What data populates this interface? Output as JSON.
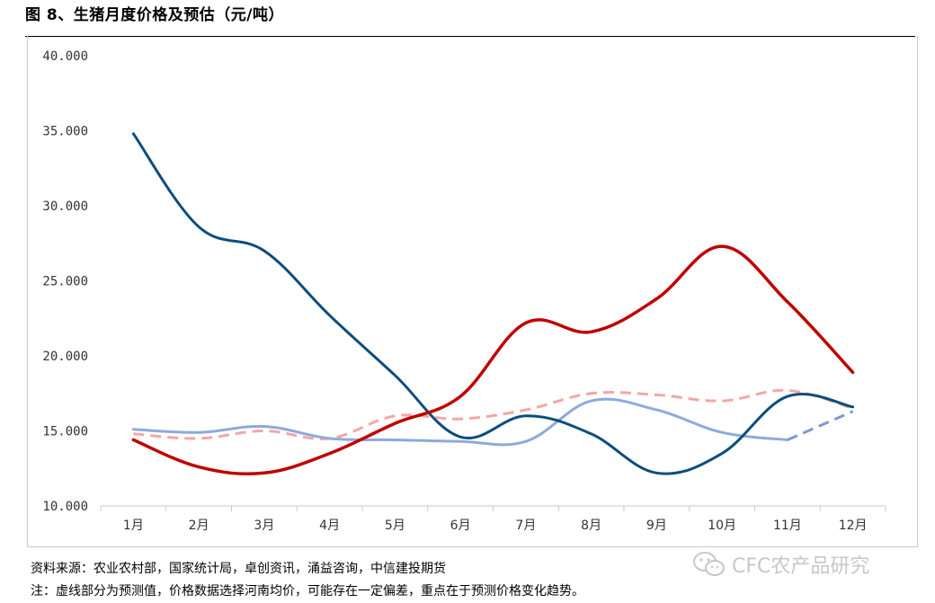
{
  "figure": {
    "title": "图 8、生猪月度价格及预估（元/吨）",
    "source": "资料来源：农业农村部，国家统计局，卓创资讯，涌益咨询，中信建投期货",
    "note": "注：虚线部分为预测值，价格数据选择河南均价，可能存在一定偏差，重点在于预测价格变化趋势。",
    "watermark": "CFC农产品研究",
    "watermark_icon": "wechat-icon"
  },
  "chart_data": {
    "type": "line",
    "title": "",
    "xlabel": "",
    "ylabel": "",
    "categories": [
      "1月",
      "2月",
      "3月",
      "4月",
      "5月",
      "6月",
      "7月",
      "8月",
      "9月",
      "10月",
      "11月",
      "12月"
    ],
    "ylim": [
      10,
      40
    ],
    "yticks": [
      "10.000",
      "15.000",
      "20.000",
      "25.000",
      "30.000",
      "35.000",
      "40.000"
    ],
    "grid": false,
    "legend": "none",
    "series": [
      {
        "color": "#0b4d7e",
        "style": "solid",
        "values": [
          34.8,
          28.6,
          27.0,
          22.7,
          18.7,
          14.6,
          16.0,
          14.8,
          12.2,
          13.5,
          17.3,
          16.6
        ]
      },
      {
        "color": "#c00000",
        "style": "solid",
        "values": [
          14.4,
          12.6,
          12.2,
          13.5,
          15.5,
          17.3,
          22.2,
          21.6,
          23.8,
          27.3,
          23.6,
          18.9
        ]
      },
      {
        "color": "#8eaadb",
        "style": "solid",
        "values": [
          15.1,
          14.9,
          15.3,
          14.5,
          14.4,
          14.3,
          14.3,
          17.0,
          16.4,
          14.9,
          14.4,
          null
        ]
      },
      {
        "color": "#7c98d4",
        "style": "dashed",
        "values": [
          null,
          null,
          null,
          null,
          null,
          null,
          null,
          null,
          null,
          null,
          14.4,
          16.3
        ]
      },
      {
        "color": "#f4a6a6",
        "style": "dashed",
        "values": [
          14.8,
          14.5,
          15.0,
          14.5,
          16.0,
          15.8,
          16.4,
          17.5,
          17.4,
          17.0,
          17.7,
          16.5
        ]
      }
    ]
  }
}
